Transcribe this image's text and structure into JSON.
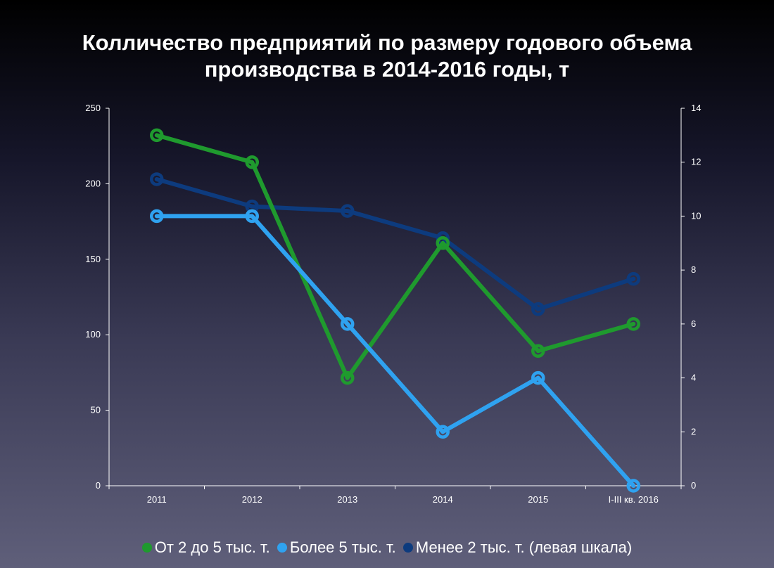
{
  "title_line1": "Колличество предприятий по размеру годового объема",
  "title_line2": "производства в 2014-2016 годы, т",
  "chart_data": {
    "type": "line",
    "categories": [
      "2011",
      "2012",
      "2013",
      "2014",
      "2015",
      "I-III кв. 2016"
    ],
    "left_axis": {
      "min": 0,
      "max": 250,
      "ticks": [
        "0",
        "50",
        "100",
        "150",
        "200",
        "250"
      ]
    },
    "right_axis": {
      "min": 0,
      "max": 14,
      "ticks": [
        "0",
        "2",
        "4",
        "6",
        "8",
        "10",
        "12",
        "14"
      ]
    },
    "series": [
      {
        "name": "От 2 до 5 тыс. т.",
        "axis": "right",
        "color": "#1f9a2e",
        "values": [
          13,
          12,
          4,
          9,
          5,
          6
        ]
      },
      {
        "name": "Более 5 тыс. т.",
        "axis": "right",
        "color": "#2fa2f0",
        "values": [
          10,
          10,
          6,
          2,
          4,
          0
        ]
      },
      {
        "name": "Менее 2 тыс. т. (левая шкала)",
        "axis": "left",
        "color": "#0d3b7e",
        "values": [
          203,
          185,
          182,
          164,
          117,
          137
        ]
      }
    ],
    "legend_position": "bottom",
    "grid": false
  },
  "legend": {
    "item1": "От 2 до 5 тыс. т.",
    "item2": "Более 5 тыс. т.",
    "item3": "Менее 2 тыс. т. (левая шкала)"
  }
}
